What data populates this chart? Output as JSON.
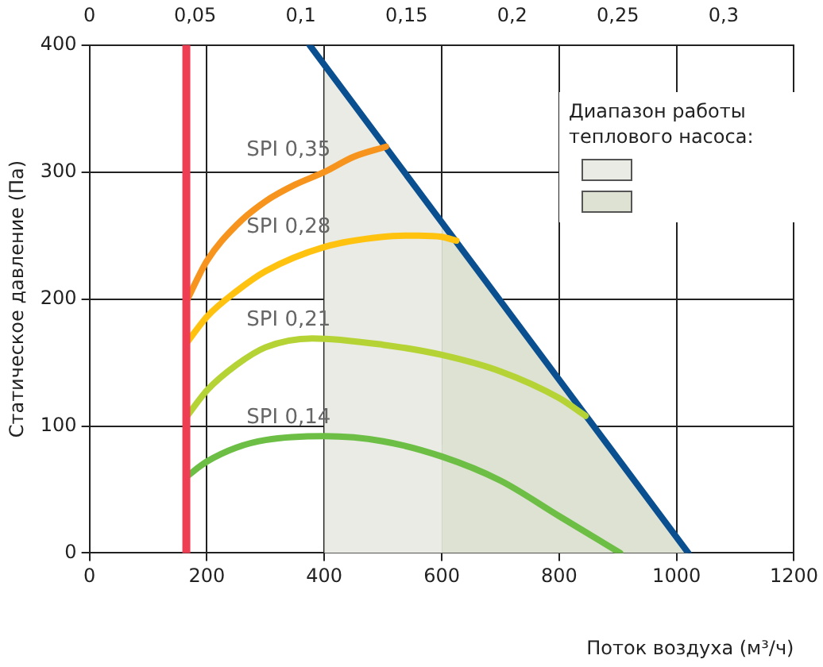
{
  "chart_data": {
    "type": "line",
    "xlabel": "Поток воздуха (м³/ч)",
    "ylabel": "Статическое давление (Па)",
    "legend_title": "Диапазон работы теплового насоса:",
    "xlim": [
      0,
      1200
    ],
    "xticks": [
      0,
      200,
      400,
      600,
      800,
      1000,
      1200
    ],
    "ylim": [
      0,
      400
    ],
    "yticks": [
      0,
      100,
      200,
      300,
      400
    ],
    "x2lim": [
      0,
      0.3333
    ],
    "x2ticks": [
      0,
      {
        "value": 0.05,
        "label": "0,05"
      },
      {
        "value": 0.1,
        "label": "0,1"
      },
      {
        "value": 0.15,
        "label": "0,15"
      },
      {
        "value": 0.2,
        "label": "0,2"
      },
      {
        "value": 0.25,
        "label": "0,25"
      },
      {
        "value": 0.3,
        "label": "0,3"
      }
    ],
    "grid": true,
    "marker": "none",
    "line_style": "solid",
    "ref_lines": [
      {
        "axis": "x",
        "value": 165,
        "color": "#ee3e54"
      }
    ],
    "series": [
      {
        "type": "area",
        "color": "#e9ebe4",
        "x": [
          400,
          600
        ],
        "values": [
          384,
          260
        ]
      },
      {
        "type": "area",
        "color": "#dde2d2",
        "x": [
          600,
          1020
        ],
        "values": [
          260,
          0
        ]
      },
      {
        "name": "SPI 0,35",
        "color": "#f7941d",
        "x": [
          165,
          200,
          250,
          300,
          350,
          400,
          450,
          505
        ],
        "values": [
          198,
          230,
          258,
          277,
          290,
          300,
          312,
          320
        ]
      },
      {
        "name": "SPI 0,28",
        "color": "#ffc20e",
        "x": [
          165,
          200,
          250,
          300,
          400,
          500,
          560,
          600,
          625
        ],
        "values": [
          165,
          186,
          206,
          222,
          241,
          249,
          250,
          249,
          246
        ]
      },
      {
        "name": "SPI 0,21",
        "color": "#b5d334",
        "x": [
          165,
          200,
          250,
          300,
          380,
          500,
          600,
          700,
          800,
          845
        ],
        "values": [
          107,
          128,
          148,
          162,
          169,
          164,
          156,
          143,
          122,
          108
        ]
      },
      {
        "name": "SPI 0,14",
        "color": "#6cbf44",
        "x": [
          165,
          200,
          250,
          300,
          400,
          500,
          600,
          700,
          800,
          904
        ],
        "values": [
          60,
          72,
          83,
          89,
          92,
          88,
          76,
          57,
          29,
          0
        ]
      },
      {
        "color": "#0a4f8f",
        "x": [
          375,
          1020
        ],
        "values": [
          400,
          0
        ]
      }
    ]
  }
}
